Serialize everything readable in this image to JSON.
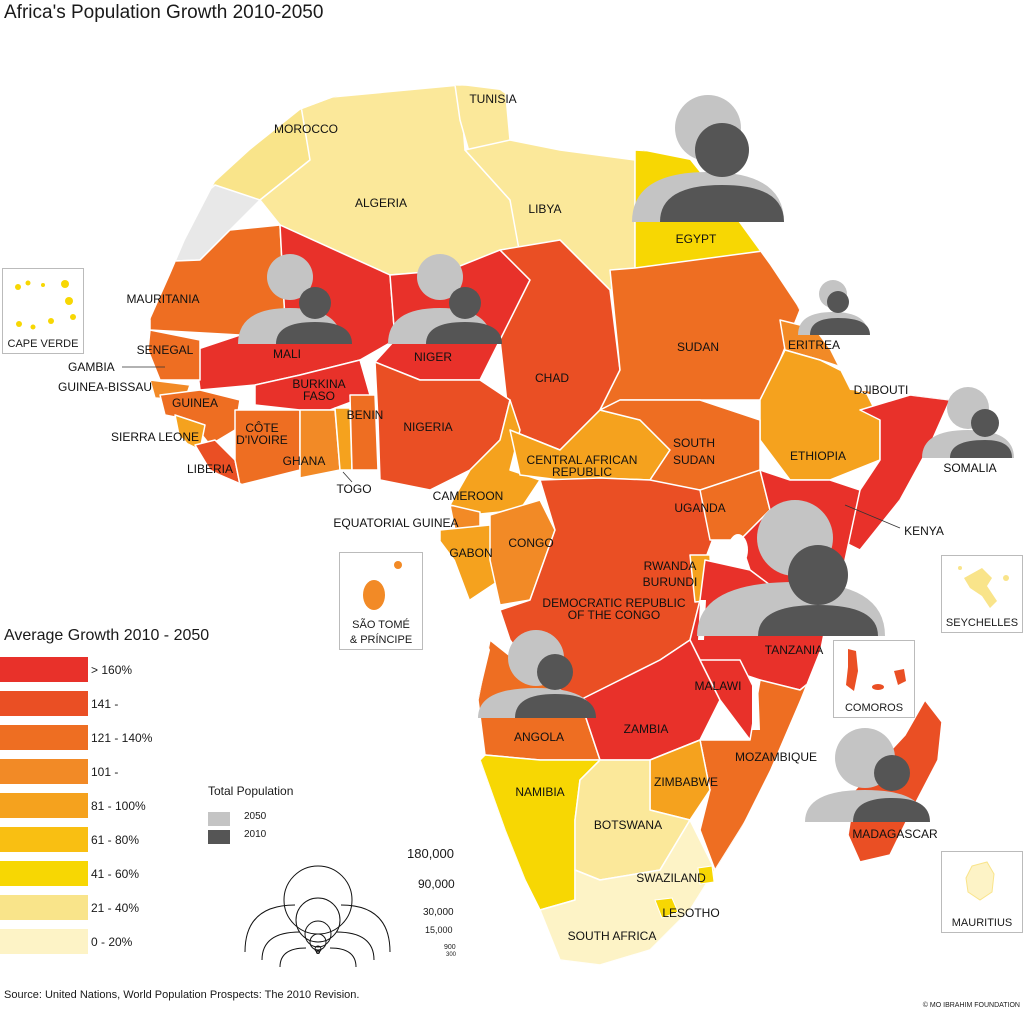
{
  "title": "Africa's Population Growth 2010-2050",
  "legend": {
    "title": "Average Growth 2010 - 2050",
    "classes": [
      {
        "label": "> 160%",
        "color": "#e8312a"
      },
      {
        "label": "141 -",
        "color": "#ea4f24"
      },
      {
        "label": "121 - 140%",
        "color": "#ee6e22"
      },
      {
        "label": "101 -",
        "color": "#f28a26"
      },
      {
        "label": "81 - 100%",
        "color": "#f5a21e"
      },
      {
        "label": "61 - 80%",
        "color": "#f9bf12"
      },
      {
        "label": "41 - 60%",
        "color": "#f7d703"
      },
      {
        "label": "21 - 40%",
        "color": "#f9e48a"
      },
      {
        "label": "0 - 20%",
        "color": "#fdf3c6"
      }
    ]
  },
  "total_population": {
    "title": "Total Population",
    "y2050": "2050",
    "y2010": "2010",
    "color_2050": "#c4c4c4",
    "color_2010": "#555555",
    "scale": [
      "180,000",
      "90,000",
      "30,000",
      "15,000",
      "900",
      "300"
    ]
  },
  "countries": {
    "tunisia": "TUNISIA",
    "morocco": "MOROCCO",
    "algeria": "ALGERIA",
    "libya": "LIBYA",
    "egypt": "EGYPT",
    "mauritania": "MAURITANIA",
    "mali": "MALI",
    "niger": "NIGER",
    "chad": "CHAD",
    "sudan": "SUDAN",
    "eritrea": "ERITREA",
    "djibouti": "DJIBOUTI",
    "senegal": "SENEGAL",
    "gambia": "GAMBIA",
    "guinea_bissau": "GUINEA-BISSAU",
    "guinea": "GUINEA",
    "sierra_leone": "SIERRA LEONE",
    "liberia": "LIBERIA",
    "burkina_1": "BURKINA",
    "burkina_2": "FASO",
    "cote_1": "CÔTE",
    "cote_2": "D'IVOIRE",
    "ghana": "GHANA",
    "togo": "TOGO",
    "benin": "BENIN",
    "nigeria": "NIGERIA",
    "car_1": "CENTRAL AFRICAN",
    "car_2": "REPUBLIC",
    "south_sudan_1": "SOUTH",
    "south_sudan_2": "SUDAN",
    "ethiopia": "ETHIOPIA",
    "somalia": "SOMALIA",
    "cameroon": "CAMEROON",
    "eq_guinea": "EQUATORIAL GUINEA",
    "gabon": "GABON",
    "congo": "CONGO",
    "uganda": "UGANDA",
    "kenya": "KENYA",
    "rwanda": "RWANDA",
    "burundi": "BURUNDI",
    "drc_1": "DEMOCRATIC REPUBLIC",
    "drc_2": "OF THE CONGO",
    "tanzania": "TANZANIA",
    "malawi": "MALAWI",
    "angola": "ANGOLA",
    "zambia": "ZAMBIA",
    "mozambique": "MOZAMBIQUE",
    "zimbabwe": "ZIMBABWE",
    "namibia": "NAMIBIA",
    "botswana": "BOTSWANA",
    "madagascar": "MADAGASCAR",
    "swaziland": "SWAZILAND",
    "lesotho": "LESOTHO",
    "south_africa": "SOUTH AFRICA"
  },
  "insets": {
    "cape_verde": "CAPE VERDE",
    "sao_tome_1": "SÃO  TOMÉ",
    "sao_tome_2": "& PRÍNCIPE",
    "seychelles": "SEYCHELLES",
    "comoros": "COMOROS",
    "mauritius": "MAURITIUS"
  },
  "source": "Source: United Nations,  World Population Prospects: The 2010 Revision.",
  "credit": "© MO IBRAHIM FOUNDATION"
}
